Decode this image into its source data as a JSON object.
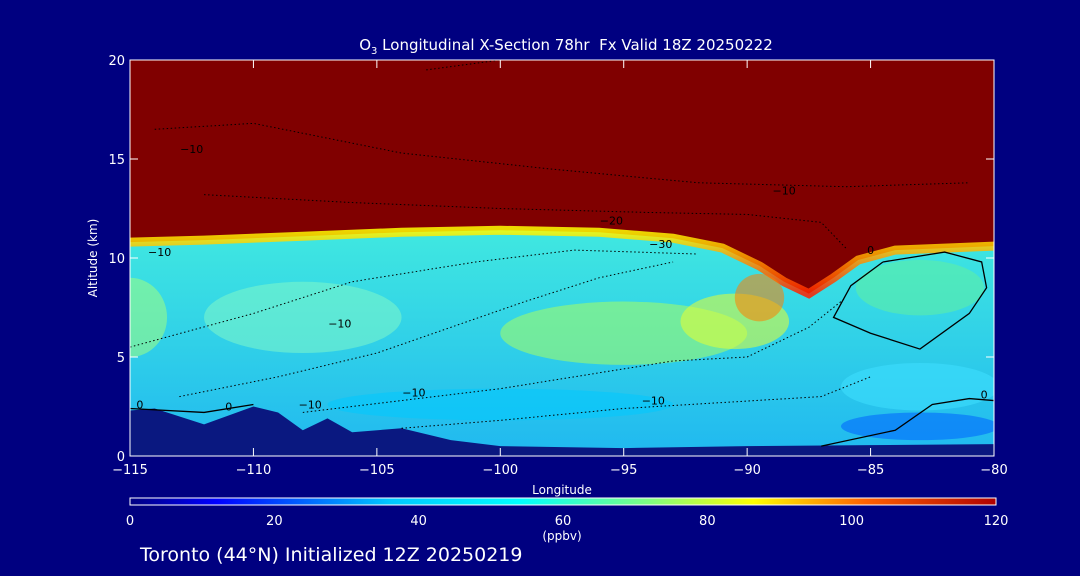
{
  "chart_data": {
    "type": "heatmap",
    "title": "O3 Longitudinal X-Section 78hr  Fx Valid 18Z 20250222",
    "title_parts": {
      "main": "O",
      "sub": "3",
      "rest": " Longitudinal X-Section 78hr  Fx Valid 18Z 20250222"
    },
    "xlabel": "Longitude",
    "ylabel": "Altitude (km)",
    "xlim": [
      -115,
      -80
    ],
    "ylim": [
      0,
      20
    ],
    "x_ticks": [
      -115,
      -110,
      -105,
      -100,
      -95,
      -90,
      -85,
      -80
    ],
    "x_tick_labels": [
      "−115",
      "−110",
      "−105",
      "−100",
      "−95",
      "−90",
      "−85",
      "−80"
    ],
    "y_ticks": [
      0,
      5,
      10,
      15,
      20
    ],
    "y_tick_labels": [
      "0",
      "5",
      "10",
      "15",
      "20"
    ],
    "colorbar": {
      "label": "(ppbv)",
      "range": [
        0,
        120
      ],
      "ticks": [
        0,
        20,
        40,
        60,
        80,
        100,
        120
      ],
      "tick_labels": [
        "0",
        "20",
        "40",
        "60",
        "80",
        "100",
        "120"
      ]
    },
    "tropopause_height_km": [
      [
        -115,
        10.8
      ],
      [
        -112,
        10.9
      ],
      [
        -108,
        11.1
      ],
      [
        -104,
        11.3
      ],
      [
        -100,
        11.4
      ],
      [
        -96,
        11.3
      ],
      [
        -93,
        11.0
      ],
      [
        -91,
        10.5
      ],
      [
        -89.5,
        9.6
      ],
      [
        -88.5,
        8.8
      ],
      [
        -87.5,
        8.2
      ],
      [
        -86.5,
        9.0
      ],
      [
        -85.5,
        9.9
      ],
      [
        -84,
        10.4
      ],
      [
        -82,
        10.5
      ],
      [
        -80,
        10.6
      ]
    ],
    "terrain_height_km": [
      [
        -115,
        2.3
      ],
      [
        -114,
        2.4
      ],
      [
        -112,
        1.6
      ],
      [
        -110,
        2.5
      ],
      [
        -109,
        2.2
      ],
      [
        -108,
        1.3
      ],
      [
        -107,
        1.9
      ],
      [
        -106,
        1.2
      ],
      [
        -104,
        1.4
      ],
      [
        -102,
        0.8
      ],
      [
        -100,
        0.5
      ],
      [
        -95,
        0.4
      ],
      [
        -90,
        0.5
      ],
      [
        -85,
        0.55
      ],
      [
        -80,
        0.6
      ]
    ],
    "contour_labels": [
      "−10",
      "−10",
      "−10",
      "−10",
      "−20",
      "−30",
      "0",
      "0",
      "0",
      "−10",
      "−10",
      "−10",
      "0",
      "−10"
    ],
    "annotation": "Toronto (44°N) Initialized 12Z 20250219"
  },
  "colors": {
    "background": "#000080",
    "stratosphere": "#800000",
    "terrain": "#0a1880"
  }
}
